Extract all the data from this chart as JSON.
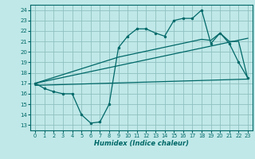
{
  "title": "",
  "xlabel": "Humidex (Indice chaleur)",
  "bg_color": "#c0e8e8",
  "grid_color": "#90c0c0",
  "line_color": "#006868",
  "xlim": [
    -0.5,
    23.5
  ],
  "ylim": [
    12.5,
    24.5
  ],
  "xticks": [
    0,
    1,
    2,
    3,
    4,
    5,
    6,
    7,
    8,
    9,
    10,
    11,
    12,
    13,
    14,
    15,
    16,
    17,
    18,
    19,
    20,
    21,
    22,
    23
  ],
  "yticks": [
    13,
    14,
    15,
    16,
    17,
    18,
    19,
    20,
    21,
    22,
    23,
    24
  ],
  "line1_x": [
    0,
    1,
    2,
    3,
    4,
    5,
    6,
    7,
    8,
    9,
    10,
    11,
    12,
    13,
    14,
    15,
    16,
    17,
    18,
    19,
    20,
    21,
    22,
    23
  ],
  "line1_y": [
    17.0,
    16.5,
    16.2,
    16.0,
    16.0,
    14.0,
    13.2,
    13.3,
    15.0,
    20.4,
    21.5,
    22.2,
    22.2,
    21.8,
    21.5,
    23.0,
    23.2,
    23.2,
    24.0,
    20.8,
    21.8,
    20.8,
    19.0,
    17.5
  ],
  "line2_x": [
    0,
    9,
    18,
    19,
    20,
    21,
    22,
    23
  ],
  "line2_y": [
    17.0,
    19.5,
    21.2,
    21.1,
    21.8,
    21.0,
    21.0,
    17.4
  ],
  "line3_x": [
    0,
    23
  ],
  "line3_y": [
    16.8,
    17.4
  ],
  "line4_x": [
    0,
    23
  ],
  "line4_y": [
    17.0,
    21.3
  ]
}
